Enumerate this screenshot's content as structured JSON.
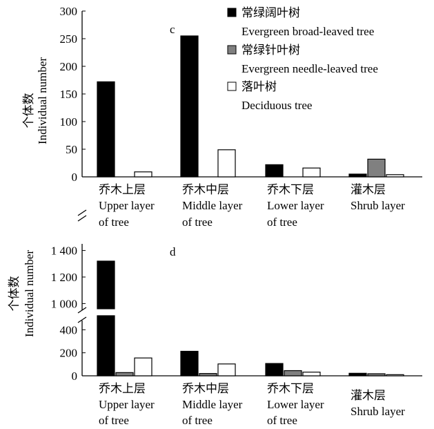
{
  "chart_data": [
    {
      "panel": "c",
      "type": "bar",
      "categories": [
        {
          "zh": "乔木上层",
          "en1": "Upper layer",
          "en2": "of tree"
        },
        {
          "zh": "乔木中层",
          "en1": "Middle layer",
          "en2": "of tree"
        },
        {
          "zh": "乔木下层",
          "en1": "Lower layer",
          "en2": "of tree"
        },
        {
          "zh": "灌木层",
          "en1": "Shrub layer",
          "en2": ""
        }
      ],
      "series": [
        {
          "name_zh": "常绿阔叶树",
          "name_en": "Evergreen broad-leaved tree",
          "color": "#000000",
          "values": [
            172,
            255,
            22,
            5
          ]
        },
        {
          "name_zh": "常绿针叶树",
          "name_en": "Evergreen needle-leaved tree",
          "color": "#808080",
          "values": [
            0,
            0,
            0,
            32
          ]
        },
        {
          "name_zh": "落叶树",
          "name_en": "Deciduous tree",
          "color": "#ffffff",
          "values": [
            9,
            49,
            16,
            4
          ]
        }
      ],
      "ylabel_zh": "个体数",
      "ylabel_en": "Individual number",
      "ylim": [
        0,
        300
      ],
      "yticks": [
        "0",
        "50",
        "100",
        "150",
        "200",
        "250",
        "300"
      ],
      "legend": "top-right",
      "grid": false
    },
    {
      "panel": "d",
      "type": "bar",
      "categories": [
        {
          "zh": "乔木上层",
          "en1": "Upper layer",
          "en2": "of tree"
        },
        {
          "zh": "乔木中层",
          "en1": "Middle layer",
          "en2": "of tree"
        },
        {
          "zh": "乔木下层",
          "en1": "Lower layer",
          "en2": "of tree"
        },
        {
          "zh": "灌木层",
          "en1": "Shrub layer",
          "en2": ""
        }
      ],
      "series": [
        {
          "name_zh": "常绿阔叶树",
          "name_en": "Evergreen broad-leaved tree",
          "color": "#000000",
          "values": [
            1320,
            213,
            107,
            22
          ]
        },
        {
          "name_zh": "常绿针叶树",
          "name_en": "Evergreen needle-leaved tree",
          "color": "#808080",
          "values": [
            28,
            20,
            45,
            18
          ]
        },
        {
          "name_zh": "落叶树",
          "name_en": "Deciduous tree",
          "color": "#ffffff",
          "values": [
            155,
            103,
            32,
            10
          ]
        }
      ],
      "ylabel_zh": "个体数",
      "ylabel_en": "Individual number",
      "axis_break": [
        480,
        950
      ],
      "ylim_lower": [
        0,
        480
      ],
      "ylim_upper": [
        950,
        1450
      ],
      "yticks_lower": [
        "0",
        "200",
        "400"
      ],
      "yticks_upper": [
        "1 000",
        "1 200",
        "1 400"
      ],
      "legend": "none",
      "grid": false
    }
  ]
}
